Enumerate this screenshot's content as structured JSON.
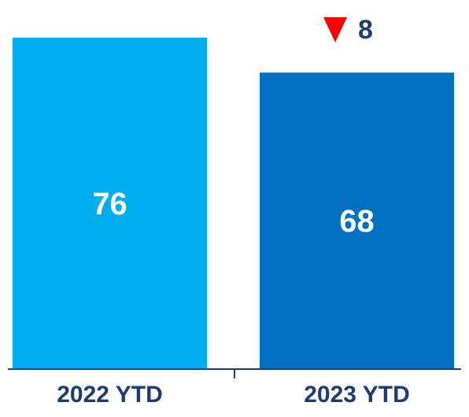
{
  "chart_data": {
    "type": "bar",
    "categories": [
      "2022 YTD",
      "2023 YTD"
    ],
    "values": [
      76,
      68
    ],
    "value_labels": [
      "76",
      "68"
    ],
    "bar_colors": [
      "#00aeef",
      "#0070c0"
    ],
    "ylim": [
      0,
      76
    ],
    "grid": false,
    "change_indicator": {
      "direction": "down",
      "value": "8",
      "icon": "down-triangle-icon",
      "icon_color": "#ff0000",
      "text_color": "#1f3b73"
    },
    "axis_color": "#1f3b73",
    "label_color": "#1f3b73"
  }
}
